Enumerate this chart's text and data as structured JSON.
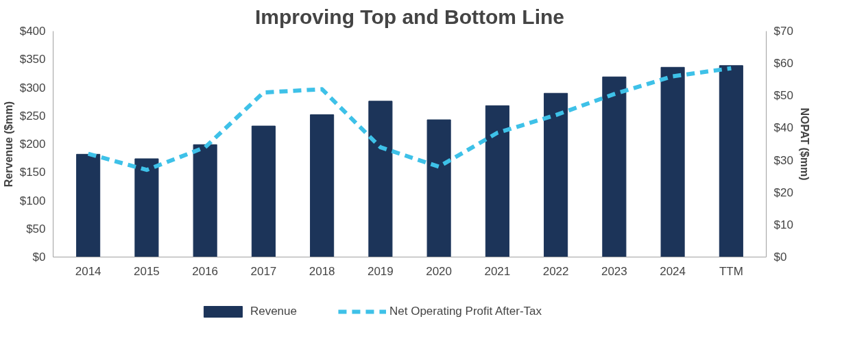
{
  "chart_data": {
    "type": "bar",
    "title": "Improving Top and Bottom Line",
    "ylabel": "Rervenue ($mm)",
    "y2label": "NOPAT ($mm)",
    "categories": [
      "2014",
      "2015",
      "2016",
      "2017",
      "2018",
      "2019",
      "2020",
      "2021",
      "2022",
      "2023",
      "2024",
      "TTM"
    ],
    "series": [
      {
        "name": "Revenue",
        "color": "#1c3459",
        "values": [
          182,
          174,
          199,
          232,
          252,
          276,
          243,
          268,
          290,
          319,
          336,
          339
        ]
      },
      {
        "name": "Net Operating Profit After-Tax",
        "type": "line",
        "axis": "y2",
        "color": "#3ec1e8",
        "line_style": "dashed",
        "values": [
          32,
          27,
          34,
          51,
          52,
          34,
          28,
          38.5,
          44,
          50.5,
          56,
          58.5
        ]
      }
    ],
    "ylim": [
      0,
      400
    ],
    "yticks": [
      {
        "value": 0,
        "label": "$0"
      },
      {
        "value": 50,
        "label": "$50"
      },
      {
        "value": 100,
        "label": "$100"
      },
      {
        "value": 150,
        "label": "$150"
      },
      {
        "value": 200,
        "label": "$200"
      },
      {
        "value": 250,
        "label": "$250"
      },
      {
        "value": 300,
        "label": "$300"
      },
      {
        "value": 350,
        "label": "$350"
      },
      {
        "value": 400,
        "label": "$400"
      }
    ],
    "y2lim": [
      0,
      70
    ],
    "y2ticks": [
      {
        "value": 0,
        "label": "$0"
      },
      {
        "value": 10,
        "label": "$10"
      },
      {
        "value": 20,
        "label": "$20"
      },
      {
        "value": 30,
        "label": "$30"
      },
      {
        "value": 40,
        "label": "$40"
      },
      {
        "value": 50,
        "label": "$50"
      },
      {
        "value": 60,
        "label": "$60"
      },
      {
        "value": 70,
        "label": "$70"
      }
    ],
    "legend": "bottom",
    "grid": false
  }
}
